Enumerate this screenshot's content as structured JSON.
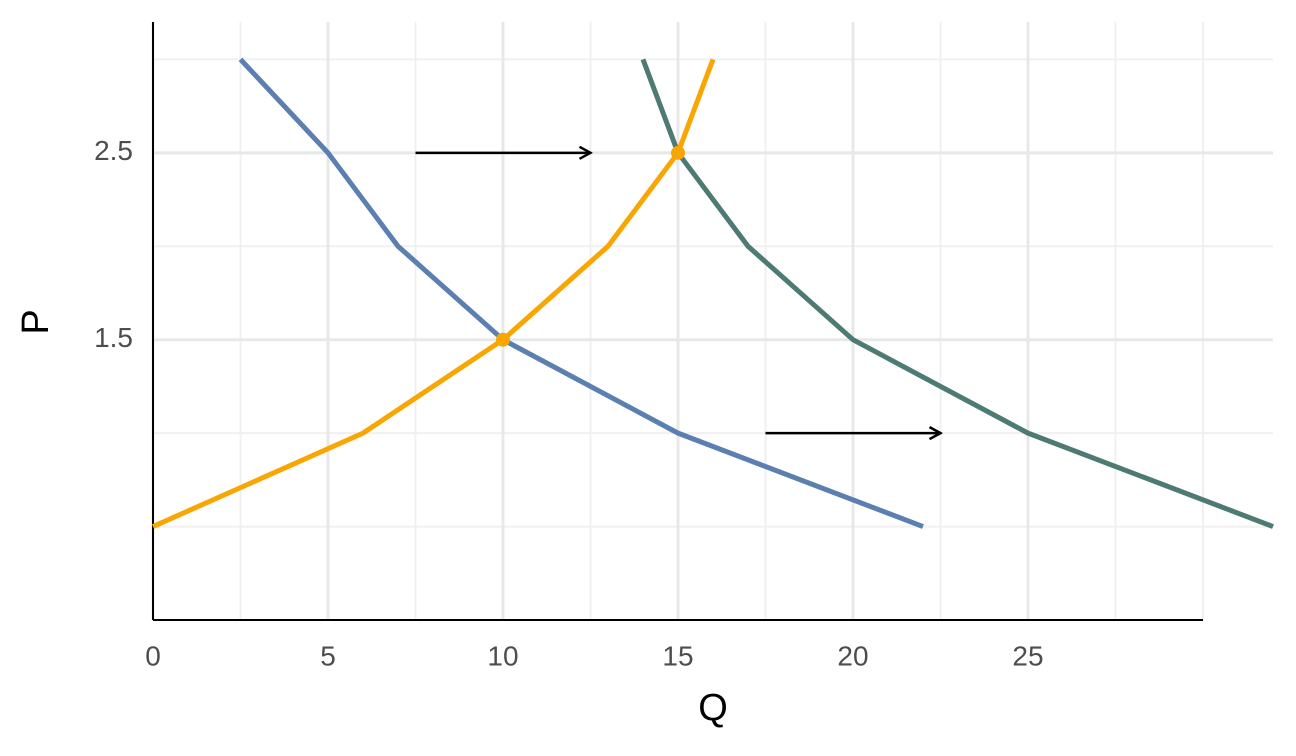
{
  "chart_data": {
    "type": "line",
    "xlabel": "Q",
    "ylabel": "P",
    "xlim": [
      0,
      32
    ],
    "ylim": [
      0,
      3.2
    ],
    "xticks": [
      0,
      5,
      10,
      15,
      20,
      25
    ],
    "yticks": [
      1.5,
      2.5
    ],
    "minor_xticks": [
      2.5,
      7.5,
      12.5,
      17.5,
      22.5,
      27.5,
      30
    ],
    "minor_yticks": [
      0.5,
      1,
      2,
      3
    ],
    "grid": true,
    "series": [
      {
        "color": "#5b7fb0",
        "x": [
          2.5,
          5,
          7,
          10,
          15,
          22
        ],
        "values": [
          3,
          2.5,
          2,
          1.5,
          1,
          0.5
        ]
      },
      {
        "color": "#f9a602",
        "x": [
          0,
          6,
          10,
          13,
          15,
          16
        ],
        "values": [
          0.5,
          1,
          1.5,
          2,
          2.5,
          3
        ]
      },
      {
        "color": "#4d7a72",
        "x": [
          14,
          15,
          17,
          20,
          25,
          32
        ],
        "values": [
          3,
          2.5,
          2,
          1.5,
          1,
          0.5
        ]
      }
    ],
    "points": {
      "color": "#f9a602",
      "x": [
        10,
        15
      ],
      "values": [
        1.5,
        2.5
      ]
    },
    "arrows": [
      {
        "x": [
          7.5,
          12.5
        ],
        "y": 2.5
      },
      {
        "x": [
          17.5,
          22.5
        ],
        "y": 1
      }
    ]
  }
}
